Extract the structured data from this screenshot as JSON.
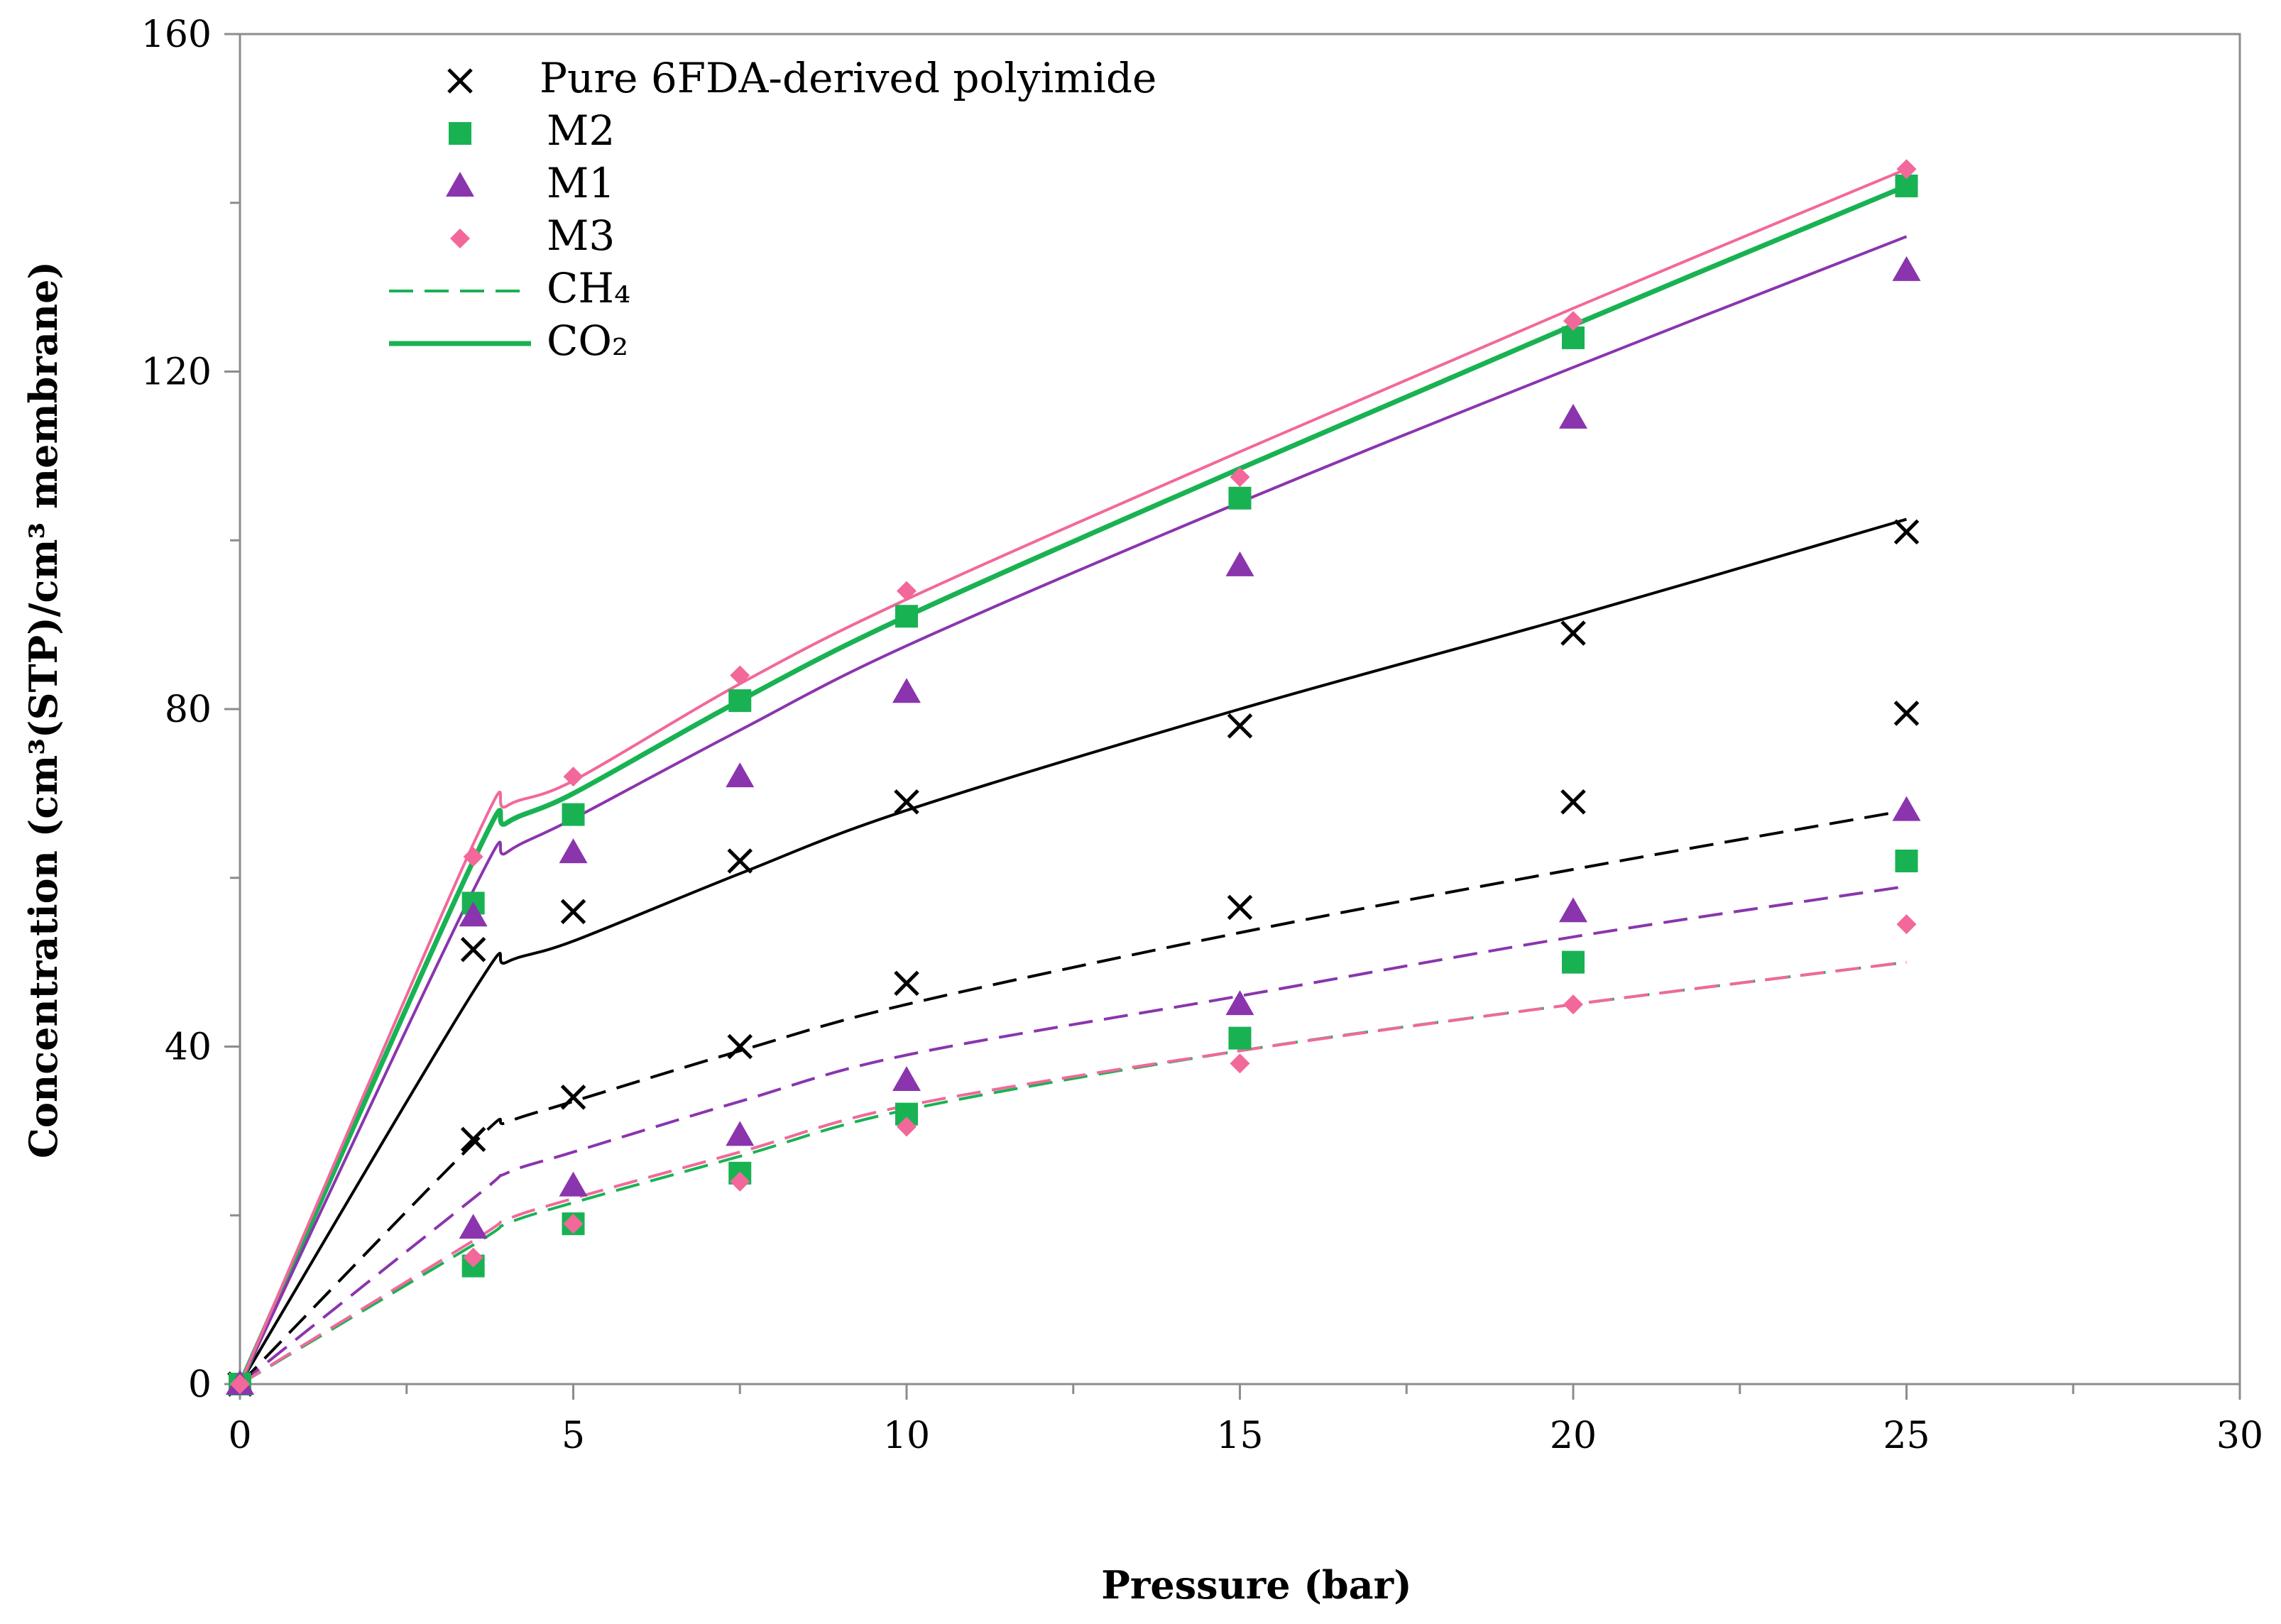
{
  "chart_data": {
    "type": "scatter",
    "xlabel": "Pressure (bar)",
    "ylabel": "Concentration (cm³(STP)/cm³ membrane)",
    "xlim": [
      0,
      30
    ],
    "ylim": [
      0,
      160
    ],
    "x_ticks": [
      "0",
      "5",
      "10",
      "15",
      "20",
      "25",
      "30"
    ],
    "y_ticks": [
      "0",
      "40",
      "80",
      "120",
      "160"
    ],
    "x_tick_values": [
      0,
      5,
      10,
      15,
      20,
      25,
      30
    ],
    "y_tick_values": [
      0,
      40,
      80,
      120,
      160
    ],
    "grid": false,
    "legend": {
      "placement": "top-left",
      "entries": [
        {
          "label": "Pure 6FDA-derived polyimide",
          "marker": "x",
          "color": "#000000"
        },
        {
          "label": "M2",
          "marker": "square",
          "color": "#19b253"
        },
        {
          "label": "M1",
          "marker": "triangle",
          "color": "#8a35ad"
        },
        {
          "label": "M3",
          "marker": "diamond",
          "color": "#f2689a"
        },
        {
          "label": "CH₄",
          "line": "dashed",
          "color": "#19b253"
        },
        {
          "label": "CO₂",
          "line": "solid",
          "color": "#19b253"
        }
      ]
    },
    "series": [
      {
        "name": "Pure 6FDA-derived polyimide",
        "gas": "CO2",
        "marker": "x",
        "color": "#000000",
        "x": [
          0,
          3.5,
          5,
          7.5,
          10,
          15,
          20,
          25
        ],
        "y": [
          0,
          51.5,
          56,
          62,
          69,
          78,
          89,
          101
        ]
      },
      {
        "name": "Pure 6FDA-derived polyimide",
        "gas": "CH4",
        "marker": "x",
        "color": "#000000",
        "x": [
          0,
          3.5,
          5,
          7.5,
          10,
          15,
          20,
          25
        ],
        "y": [
          0,
          29,
          34,
          40,
          47.5,
          56.5,
          69,
          79.5
        ]
      },
      {
        "name": "M2",
        "gas": "CO2",
        "marker": "square",
        "color": "#19b253",
        "x": [
          0,
          3.5,
          5,
          7.5,
          10,
          15,
          20,
          25
        ],
        "y": [
          0,
          57,
          67.5,
          81,
          91,
          105,
          124,
          142
        ]
      },
      {
        "name": "M2",
        "gas": "CH4",
        "marker": "square",
        "color": "#19b253",
        "x": [
          0,
          3.5,
          5,
          7.5,
          10,
          15,
          20,
          25
        ],
        "y": [
          0,
          14,
          19,
          25,
          32,
          41,
          50,
          62
        ]
      },
      {
        "name": "M1",
        "gas": "CO2",
        "marker": "triangle",
        "color": "#8a35ad",
        "x": [
          0,
          3.5,
          5,
          7.5,
          10,
          15,
          20,
          25
        ],
        "y": [
          0,
          55.5,
          63,
          72,
          82,
          97,
          114.5,
          132
        ]
      },
      {
        "name": "M1",
        "gas": "CH4",
        "marker": "triangle",
        "color": "#8a35ad",
        "x": [
          0,
          3.5,
          5,
          7.5,
          10,
          15,
          20,
          25
        ],
        "y": [
          0,
          18.5,
          23.5,
          29.5,
          36,
          45,
          56,
          68
        ]
      },
      {
        "name": "M3",
        "gas": "CO2",
        "marker": "diamond",
        "color": "#f2689a",
        "x": [
          0,
          3.5,
          5,
          7.5,
          10,
          15,
          20,
          25
        ],
        "y": [
          0,
          62.5,
          72,
          84,
          94,
          107.5,
          126,
          144
        ]
      },
      {
        "name": "M3",
        "gas": "CH4",
        "marker": "diamond",
        "color": "#f2689a",
        "x": [
          0,
          3.5,
          5,
          7.5,
          10,
          15,
          20,
          25
        ],
        "y": [
          0,
          15,
          19,
          24,
          30.5,
          38,
          45,
          54.5
        ]
      }
    ],
    "fits": [
      {
        "name": "Pure 6FDA-derived polyimide CO2 fit",
        "color": "#000000",
        "style": "solid",
        "x": [
          0,
          3.5,
          4,
          5,
          7.5,
          10,
          15,
          20,
          25
        ],
        "y": [
          0,
          46.5,
          50,
          52.5,
          60.5,
          68,
          80,
          91,
          102.5
        ]
      },
      {
        "name": "Pure 6FDA-derived polyimide CH4 fit",
        "color": "#000000",
        "style": "dashed",
        "x": [
          0,
          3.5,
          4,
          5,
          7.5,
          10,
          15,
          20,
          25
        ],
        "y": [
          0,
          28.5,
          31,
          33.5,
          39.5,
          45,
          53.5,
          61,
          68
        ]
      },
      {
        "name": "M2 CO2 fit",
        "color": "#19b253",
        "style": "solid",
        "x": [
          0,
          3.5,
          4,
          5,
          7.5,
          10,
          15,
          20,
          25
        ],
        "y": [
          0,
          62,
          66.5,
          70,
          81,
          91,
          108.5,
          125.5,
          142
        ]
      },
      {
        "name": "M2 CH4 fit",
        "color": "#19b253",
        "style": "dashed",
        "x": [
          0,
          3.5,
          4,
          5,
          7.5,
          10,
          15,
          20,
          25
        ],
        "y": [
          0,
          16.5,
          19,
          21.5,
          27,
          32.5,
          39.5,
          45,
          50
        ]
      },
      {
        "name": "M1 CO2 fit",
        "color": "#8a35ad",
        "style": "solid",
        "x": [
          0,
          3.5,
          4,
          5,
          7.5,
          10,
          15,
          20,
          25
        ],
        "y": [
          0,
          58.5,
          63,
          67,
          77.5,
          87.5,
          104.5,
          120.5,
          136
        ]
      },
      {
        "name": "M1 CH4 fit",
        "color": "#8a35ad",
        "style": "dashed",
        "x": [
          0,
          3.5,
          4,
          5,
          7.5,
          10,
          15,
          20,
          25
        ],
        "y": [
          0,
          22,
          25,
          27.5,
          33.5,
          39,
          46,
          53,
          59
        ]
      },
      {
        "name": "M3 CO2 fit",
        "color": "#f2689a",
        "style": "solid",
        "x": [
          0,
          3.5,
          4,
          5,
          7.5,
          10,
          15,
          20,
          25
        ],
        "y": [
          0,
          64,
          68.5,
          71.5,
          83,
          93,
          110.5,
          127.5,
          144
        ]
      },
      {
        "name": "M3 CH4 fit",
        "color": "#f2689a",
        "style": "dashed",
        "x": [
          0,
          3.5,
          4,
          5,
          7.5,
          10,
          15,
          20,
          25
        ],
        "y": [
          0,
          17,
          19.5,
          22,
          27.5,
          33,
          39.5,
          45,
          50
        ]
      }
    ]
  }
}
